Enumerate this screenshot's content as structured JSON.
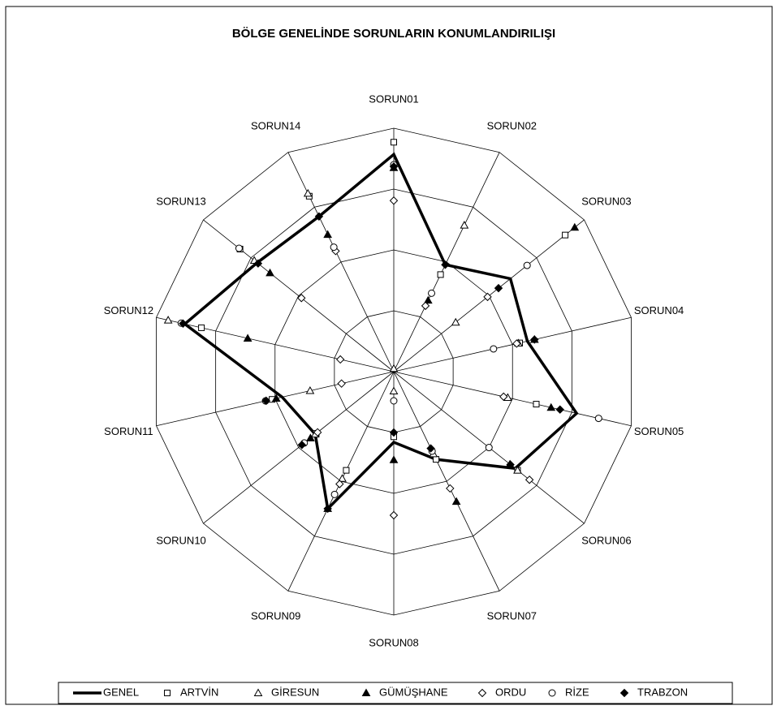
{
  "chart_data": {
    "type": "radar",
    "title": "BÖLGE GENELİNDE SORUNLARIN KONUMLANDIRILIŞI",
    "categories": [
      "SORUN01",
      "SORUN02",
      "SORUN03",
      "SORUN04",
      "SORUN05",
      "SORUN06",
      "SORUN07",
      "SORUN08",
      "SORUN09",
      "SORUN10",
      "SORUN11",
      "SORUN12",
      "SORUN13",
      "SORUN14"
    ],
    "rlim": [
      0,
      4
    ],
    "rticks": [
      1,
      2,
      3,
      4
    ],
    "grid": true,
    "legend": "bottom",
    "series": [
      {
        "name": "GENEL",
        "color": "#000000",
        "marker": "none",
        "values": [
          3.57,
          1.95,
          2.45,
          2.25,
          3.08,
          2.55,
          1.6,
          1.16,
          2.5,
          1.65,
          1.88,
          3.52,
          2.87,
          2.83
        ]
      },
      {
        "name": "ARTVİN",
        "color": "#000000",
        "marker": "square-open",
        "values": [
          3.77,
          1.77,
          3.6,
          2.12,
          2.4,
          2.6,
          1.6,
          1.07,
          1.8,
          1.63,
          2.05,
          3.24,
          3.23,
          3.2
        ]
      },
      {
        "name": "GİRESUN",
        "color": "#000000",
        "marker": "triangle-open",
        "values": [
          0.05,
          2.67,
          1.3,
          2.1,
          1.92,
          2.6,
          1.5,
          0.32,
          1.95,
          1.65,
          1.41,
          3.8,
          2.93,
          3.25
        ]
      },
      {
        "name": "GÜMÜŞHANE",
        "color": "#000000",
        "marker": "triangle-filled",
        "values": [
          3.35,
          1.3,
          3.8,
          2.37,
          2.65,
          2.44,
          2.37,
          1.45,
          2.5,
          1.75,
          1.98,
          2.46,
          2.6,
          2.5
        ]
      },
      {
        "name": "ORDU",
        "color": "#000000",
        "marker": "diamond-open",
        "values": [
          2.81,
          1.2,
          1.97,
          2.07,
          1.85,
          2.85,
          2.13,
          2.36,
          2.05,
          1.6,
          0.88,
          0.9,
          1.94,
          2.2
        ]
      },
      {
        "name": "RİZE",
        "color": "#000000",
        "marker": "circle-open",
        "values": [
          3.4,
          1.43,
          2.8,
          1.68,
          3.45,
          2.0,
          1.45,
          0.48,
          2.24,
          1.88,
          2.16,
          3.58,
          3.25,
          2.27
        ]
      },
      {
        "name": "TRABZON",
        "color": "#000000",
        "marker": "diamond-filled",
        "values": [
          3.37,
          1.95,
          2.2,
          2.37,
          2.8,
          2.45,
          1.4,
          1.0,
          2.5,
          1.93,
          2.15,
          3.55,
          2.85,
          2.83
        ]
      }
    ]
  }
}
